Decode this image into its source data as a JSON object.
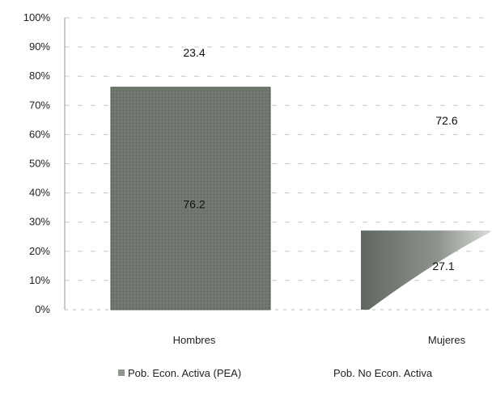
{
  "chart_data": {
    "type": "bar",
    "stacked": true,
    "percent": true,
    "title": "",
    "xlabel": "",
    "ylabel": "",
    "ylim": [
      0,
      100
    ],
    "yticks": [
      "0%",
      "10%",
      "20%",
      "30%",
      "40%",
      "50%",
      "60%",
      "70%",
      "80%",
      "90%",
      "100%"
    ],
    "categories": [
      "Hombres",
      "Mujeres"
    ],
    "series": [
      {
        "name": "Pob. Econ. Activa (PEA)",
        "values": [
          76.2,
          27.1
        ],
        "labels": [
          "76.2",
          "27.1"
        ],
        "color": "#6f7770"
      },
      {
        "name": "Pob. No Econ. Activa",
        "values": [
          23.4,
          72.6
        ],
        "labels": [
          "23.4",
          "72.6"
        ],
        "color": "#ffffff"
      }
    ],
    "grid": true,
    "legend_position": "bottom"
  }
}
